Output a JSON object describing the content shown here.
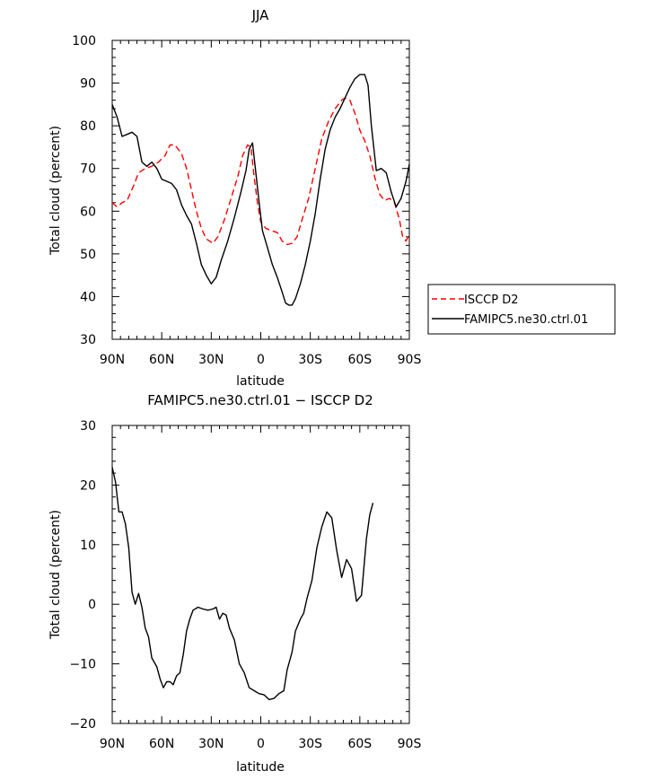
{
  "colors": {
    "isccp": "#ff0000",
    "model": "#000000"
  },
  "chart_data": [
    {
      "type": "line",
      "title": "JJA",
      "xlabel": "latitude",
      "ylabel": "Total cloud (percent)",
      "xlim": [
        90,
        -90
      ],
      "ylim": [
        30,
        100
      ],
      "xticks": [
        {
          "value": 90,
          "label": "90N"
        },
        {
          "value": 60,
          "label": "60N"
        },
        {
          "value": 30,
          "label": "30N"
        },
        {
          "value": 0,
          "label": "0"
        },
        {
          "value": -30,
          "label": "30S"
        },
        {
          "value": -60,
          "label": "60S"
        },
        {
          "value": -90,
          "label": "90S"
        }
      ],
      "yticks": [
        30,
        40,
        50,
        60,
        70,
        80,
        90,
        100
      ],
      "legend": {
        "placement": "right",
        "entries": [
          "ISCCP D2",
          "FAMIPC5.ne30.ctrl.01"
        ]
      },
      "series": [
        {
          "name": "ISCCP D2",
          "color": "#ff0000",
          "dash": true,
          "points": [
            [
              90,
              62
            ],
            [
              87,
              61
            ],
            [
              84,
              62
            ],
            [
              81,
              62.5
            ],
            [
              77,
              66
            ],
            [
              74,
              69
            ],
            [
              70,
              70
            ],
            [
              66,
              70.5
            ],
            [
              62,
              71.5
            ],
            [
              58,
              73
            ],
            [
              55,
              75.5
            ],
            [
              52,
              75.5
            ],
            [
              48,
              73.5
            ],
            [
              45,
              70
            ],
            [
              42,
              65
            ],
            [
              39,
              60
            ],
            [
              36,
              56
            ],
            [
              33,
              53.5
            ],
            [
              29,
              52.5
            ],
            [
              26,
              54
            ],
            [
              22,
              58
            ],
            [
              18,
              63
            ],
            [
              14,
              68
            ],
            [
              11,
              73
            ],
            [
              8,
              75.5
            ],
            [
              6,
              75
            ],
            [
              4,
              68
            ],
            [
              2,
              62
            ],
            [
              0,
              57.5
            ],
            [
              -3,
              56
            ],
            [
              -6,
              55.5
            ],
            [
              -10,
              55
            ],
            [
              -13,
              53
            ],
            [
              -16,
              52.2
            ],
            [
              -19,
              52.5
            ],
            [
              -22,
              54
            ],
            [
              -25,
              58
            ],
            [
              -29,
              63
            ],
            [
              -33,
              70
            ],
            [
              -37,
              77
            ],
            [
              -41,
              81
            ],
            [
              -45,
              84
            ],
            [
              -49,
              86
            ],
            [
              -51,
              86.5
            ],
            [
              -54,
              86
            ],
            [
              -57,
              83
            ],
            [
              -60,
              79
            ],
            [
              -63,
              76.5
            ],
            [
              -66,
              73
            ],
            [
              -69,
              68
            ],
            [
              -72,
              64
            ],
            [
              -75,
              62.5
            ],
            [
              -78,
              63
            ],
            [
              -81,
              62
            ],
            [
              -84,
              58
            ],
            [
              -86,
              54
            ],
            [
              -88,
              53
            ],
            [
              -90,
              54.5
            ]
          ]
        },
        {
          "name": "FAMIPC5.ne30.ctrl.01",
          "color": "#000000",
          "dash": false,
          "points": [
            [
              90,
              85
            ],
            [
              87,
              82
            ],
            [
              84,
              77.5
            ],
            [
              81,
              78
            ],
            [
              78,
              78.5
            ],
            [
              75,
              77.5
            ],
            [
              72,
              71.5
            ],
            [
              69,
              70.5
            ],
            [
              66,
              71.5
            ],
            [
              63,
              70
            ],
            [
              60,
              67.5
            ],
            [
              57,
              67
            ],
            [
              54,
              66.5
            ],
            [
              51,
              65
            ],
            [
              48,
              61.5
            ],
            [
              45,
              59
            ],
            [
              42,
              57
            ],
            [
              39,
              52.5
            ],
            [
              36,
              47.5
            ],
            [
              33,
              45
            ],
            [
              30,
              43
            ],
            [
              27,
              44.5
            ],
            [
              24,
              48.5
            ],
            [
              20,
              53
            ],
            [
              16,
              58.5
            ],
            [
              12,
              64.5
            ],
            [
              9,
              69.5
            ],
            [
              7,
              74.5
            ],
            [
              5,
              76
            ],
            [
              3,
              69
            ],
            [
              1,
              62
            ],
            [
              -1,
              55.5
            ],
            [
              -4,
              51.5
            ],
            [
              -7,
              47.5
            ],
            [
              -10,
              44.5
            ],
            [
              -13,
              41
            ],
            [
              -15,
              38.5
            ],
            [
              -17,
              38
            ],
            [
              -19,
              38
            ],
            [
              -21,
              39.5
            ],
            [
              -24,
              43
            ],
            [
              -27,
              47.5
            ],
            [
              -30,
              53
            ],
            [
              -33,
              59.5
            ],
            [
              -36,
              67.5
            ],
            [
              -39,
              74.5
            ],
            [
              -42,
              79
            ],
            [
              -45,
              82
            ],
            [
              -48,
              84
            ],
            [
              -51,
              86.5
            ],
            [
              -54,
              89
            ],
            [
              -57,
              91
            ],
            [
              -60,
              92
            ],
            [
              -63,
              92
            ],
            [
              -65,
              89.5
            ],
            [
              -67,
              80
            ],
            [
              -70,
              69.5
            ],
            [
              -73,
              70
            ],
            [
              -76,
              69
            ],
            [
              -79,
              64.5
            ],
            [
              -82,
              61
            ],
            [
              -85,
              63
            ],
            [
              -88,
              67
            ],
            [
              -90,
              71
            ]
          ]
        }
      ]
    },
    {
      "type": "line",
      "title": "FAMIPC5.ne30.ctrl.01 − ISCCP D2",
      "xlabel": "latitude",
      "ylabel": "Total cloud (percent)",
      "xlim": [
        90,
        -90
      ],
      "ylim": [
        -20,
        30
      ],
      "xticks": [
        {
          "value": 90,
          "label": "90N"
        },
        {
          "value": 60,
          "label": "60N"
        },
        {
          "value": 30,
          "label": "30N"
        },
        {
          "value": 0,
          "label": "0"
        },
        {
          "value": -30,
          "label": "30S"
        },
        {
          "value": -60,
          "label": "60S"
        },
        {
          "value": -90,
          "label": "90S"
        }
      ],
      "yticks": [
        {
          "value": 30,
          "label": "30"
        },
        {
          "value": 20,
          "label": "20"
        },
        {
          "value": 10,
          "label": "10"
        },
        {
          "value": 0,
          "label": "0"
        },
        {
          "value": -10,
          "label": "−10"
        },
        {
          "value": -20,
          "label": "−20"
        }
      ],
      "series": [
        {
          "color": "#000000",
          "dash": false,
          "points": [
            [
              90,
              23
            ],
            [
              88,
              20.5
            ],
            [
              86,
              15.5
            ],
            [
              84,
              15.5
            ],
            [
              82,
              13.5
            ],
            [
              80,
              9.5
            ],
            [
              78,
              2
            ],
            [
              76,
              0
            ],
            [
              74,
              1.8
            ],
            [
              72,
              -0.5
            ],
            [
              70,
              -4
            ],
            [
              68,
              -5.5
            ],
            [
              66,
              -9
            ],
            [
              63,
              -10.5
            ],
            [
              61,
              -12.5
            ],
            [
              59,
              -14
            ],
            [
              57,
              -13
            ],
            [
              55,
              -13
            ],
            [
              53,
              -13.5
            ],
            [
              51,
              -12
            ],
            [
              49,
              -11.5
            ],
            [
              47,
              -8.5
            ],
            [
              45,
              -4.5
            ],
            [
              43,
              -2.5
            ],
            [
              41,
              -1
            ],
            [
              38,
              -0.5
            ],
            [
              35,
              -0.8
            ],
            [
              32,
              -1
            ],
            [
              29,
              -0.8
            ],
            [
              27,
              -0.5
            ],
            [
              25,
              -2.5
            ],
            [
              23,
              -1.5
            ],
            [
              21,
              -1.8
            ],
            [
              19,
              -4
            ],
            [
              16,
              -6
            ],
            [
              13,
              -10
            ],
            [
              10,
              -11.5
            ],
            [
              7,
              -14
            ],
            [
              4,
              -14.5
            ],
            [
              1,
              -15
            ],
            [
              -2,
              -15.2
            ],
            [
              -5,
              -16
            ],
            [
              -8,
              -15.8
            ],
            [
              -11,
              -15
            ],
            [
              -14,
              -14.5
            ],
            [
              -16,
              -11
            ],
            [
              -19,
              -8
            ],
            [
              -21,
              -4.5
            ],
            [
              -24,
              -2.5
            ],
            [
              -26,
              -1.5
            ],
            [
              -28,
              1
            ],
            [
              -31,
              4
            ],
            [
              -34,
              9.5
            ],
            [
              -37,
              13
            ],
            [
              -40,
              15.5
            ],
            [
              -43,
              14.5
            ],
            [
              -46,
              9
            ],
            [
              -49,
              4.5
            ],
            [
              -52,
              7.5
            ],
            [
              -55,
              6
            ],
            [
              -58,
              0.5
            ],
            [
              -61,
              1.5
            ],
            [
              -64,
              11
            ],
            [
              -66,
              15
            ],
            [
              -68,
              17
            ]
          ]
        }
      ]
    }
  ]
}
